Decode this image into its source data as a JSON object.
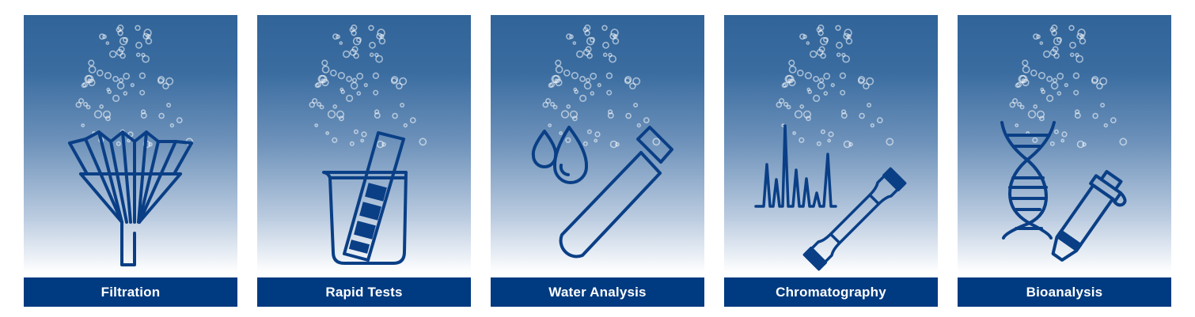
{
  "categories": [
    {
      "label": "Filtration",
      "icon": "funnel-filter-icon"
    },
    {
      "label": "Rapid Tests",
      "icon": "beaker-test-strip-icon"
    },
    {
      "label": "Water Analysis",
      "icon": "water-drops-test-tube-icon"
    },
    {
      "label": "Chromatography",
      "icon": "chromatogram-column-icon"
    },
    {
      "label": "Bioanalysis",
      "icon": "dna-vial-icon"
    }
  ],
  "colors": {
    "label_background": "#003a80",
    "label_text": "#ffffff",
    "gradient_top": "#316499",
    "gradient_bottom": "#ffffff",
    "icon_stroke": "#0a3f86"
  }
}
